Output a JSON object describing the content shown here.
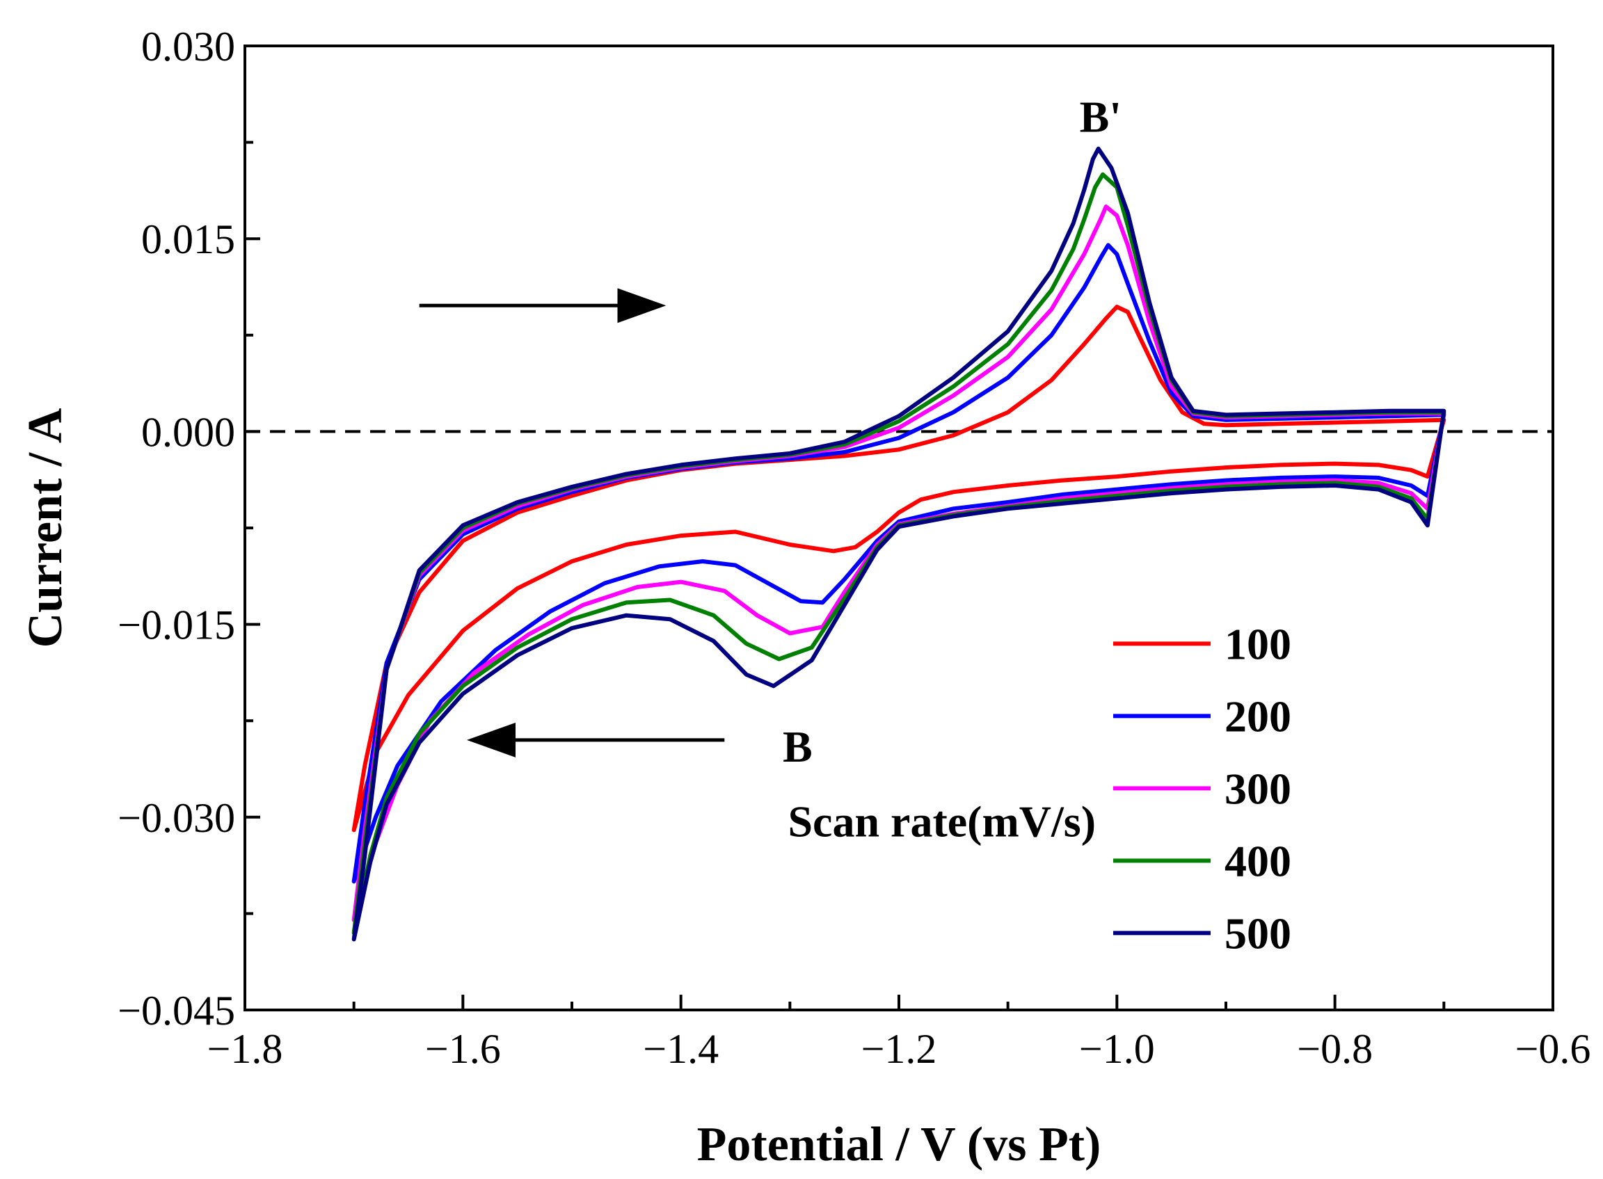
{
  "chart_data": {
    "type": "line",
    "title": "",
    "xlabel": "Potential / V (vs Pt)",
    "ylabel": "Current / A",
    "xlim": [
      -1.8,
      -0.6
    ],
    "ylim": [
      -0.045,
      0.03
    ],
    "xticks": [
      -1.8,
      -1.6,
      -1.4,
      -1.2,
      -1.0,
      -0.8,
      -0.6
    ],
    "xtick_labels": [
      "−1.8",
      "−1.6",
      "−1.4",
      "−1.2",
      "−1.0",
      "−0.8",
      "−0.6"
    ],
    "yticks": [
      0.03,
      0.015,
      0.0,
      -0.015,
      -0.03,
      -0.045
    ],
    "ytick_labels": [
      "0.030",
      "0.015",
      "0.000",
      "−0.015",
      "−0.030",
      "−0.045"
    ],
    "grid": false,
    "zero_line": {
      "y": 0.0,
      "style": "dashed",
      "color": "#000000"
    },
    "legend": {
      "title": "Scan rate(mV/s)",
      "position": "lower-right"
    },
    "annotations": [
      {
        "text": "B'",
        "x": -1.015,
        "y": 0.0245
      },
      {
        "text": "B",
        "x": -1.293,
        "y": -0.0245
      },
      {
        "text": "→ forward scan",
        "x_from": -1.64,
        "x_to": -1.42,
        "y": 0.0098
      },
      {
        "text": "← reverse scan",
        "x_from": -1.36,
        "x_to": -1.59,
        "y": -0.024
      }
    ],
    "series": [
      {
        "name": "100",
        "color": "#ff0000",
        "anodic": [
          [
            -1.7,
            -0.031
          ],
          [
            -1.69,
            -0.026
          ],
          [
            -1.67,
            -0.018
          ],
          [
            -1.64,
            -0.0125
          ],
          [
            -1.6,
            -0.0085
          ],
          [
            -1.55,
            -0.0063
          ],
          [
            -1.5,
            -0.005
          ],
          [
            -1.45,
            -0.0038
          ],
          [
            -1.4,
            -0.003
          ],
          [
            -1.35,
            -0.0025
          ],
          [
            -1.3,
            -0.0022
          ],
          [
            -1.25,
            -0.0019
          ],
          [
            -1.2,
            -0.0014
          ],
          [
            -1.15,
            -0.0003
          ],
          [
            -1.1,
            0.0015
          ],
          [
            -1.06,
            0.004
          ],
          [
            -1.03,
            0.0068
          ],
          [
            -1.01,
            0.0088
          ],
          [
            -1.0,
            0.0097
          ],
          [
            -0.99,
            0.0093
          ],
          [
            -0.98,
            0.0075
          ],
          [
            -0.96,
            0.004
          ],
          [
            -0.94,
            0.0015
          ],
          [
            -0.92,
            0.0006
          ],
          [
            -0.9,
            0.0005
          ],
          [
            -0.85,
            0.0006
          ],
          [
            -0.8,
            0.0007
          ],
          [
            -0.75,
            0.0008
          ],
          [
            -0.7,
            0.0009
          ]
        ],
        "cathodic": [
          [
            -0.715,
            -0.0035
          ],
          [
            -0.73,
            -0.003
          ],
          [
            -0.76,
            -0.0026
          ],
          [
            -0.8,
            -0.0025
          ],
          [
            -0.85,
            -0.0026
          ],
          [
            -0.9,
            -0.0028
          ],
          [
            -0.95,
            -0.0031
          ],
          [
            -1.0,
            -0.0035
          ],
          [
            -1.05,
            -0.0038
          ],
          [
            -1.1,
            -0.0042
          ],
          [
            -1.15,
            -0.0047
          ],
          [
            -1.18,
            -0.0053
          ],
          [
            -1.2,
            -0.0063
          ],
          [
            -1.22,
            -0.0078
          ],
          [
            -1.24,
            -0.009
          ],
          [
            -1.26,
            -0.0093
          ],
          [
            -1.3,
            -0.0088
          ],
          [
            -1.35,
            -0.0078
          ],
          [
            -1.4,
            -0.0081
          ],
          [
            -1.45,
            -0.0088
          ],
          [
            -1.5,
            -0.0101
          ],
          [
            -1.55,
            -0.0122
          ],
          [
            -1.6,
            -0.0155
          ],
          [
            -1.65,
            -0.0205
          ],
          [
            -1.68,
            -0.025
          ],
          [
            -1.7,
            -0.031
          ]
        ]
      },
      {
        "name": "200",
        "color": "#0000ff",
        "anodic": [
          [
            -1.7,
            -0.035
          ],
          [
            -1.69,
            -0.029
          ],
          [
            -1.67,
            -0.018
          ],
          [
            -1.64,
            -0.0115
          ],
          [
            -1.6,
            -0.008
          ],
          [
            -1.55,
            -0.006
          ],
          [
            -1.5,
            -0.0047
          ],
          [
            -1.45,
            -0.0036
          ],
          [
            -1.4,
            -0.0029
          ],
          [
            -1.35,
            -0.0024
          ],
          [
            -1.3,
            -0.0021
          ],
          [
            -1.25,
            -0.0016
          ],
          [
            -1.2,
            -0.0005
          ],
          [
            -1.15,
            0.0015
          ],
          [
            -1.1,
            0.0042
          ],
          [
            -1.06,
            0.0075
          ],
          [
            -1.03,
            0.0112
          ],
          [
            -1.015,
            0.0135
          ],
          [
            -1.008,
            0.0145
          ],
          [
            -1.0,
            0.0138
          ],
          [
            -0.99,
            0.0115
          ],
          [
            -0.97,
            0.007
          ],
          [
            -0.95,
            0.003
          ],
          [
            -0.93,
            0.0012
          ],
          [
            -0.9,
            0.0009
          ],
          [
            -0.85,
            0.001
          ],
          [
            -0.8,
            0.0011
          ],
          [
            -0.75,
            0.0012
          ],
          [
            -0.7,
            0.0013
          ]
        ],
        "cathodic": [
          [
            -0.715,
            -0.005
          ],
          [
            -0.73,
            -0.0042
          ],
          [
            -0.76,
            -0.0036
          ],
          [
            -0.8,
            -0.0035
          ],
          [
            -0.85,
            -0.0036
          ],
          [
            -0.9,
            -0.0038
          ],
          [
            -0.95,
            -0.0041
          ],
          [
            -1.0,
            -0.0045
          ],
          [
            -1.05,
            -0.0049
          ],
          [
            -1.1,
            -0.0055
          ],
          [
            -1.15,
            -0.006
          ],
          [
            -1.2,
            -0.007
          ],
          [
            -1.22,
            -0.0085
          ],
          [
            -1.25,
            -0.0115
          ],
          [
            -1.27,
            -0.0133
          ],
          [
            -1.29,
            -0.0132
          ],
          [
            -1.32,
            -0.0118
          ],
          [
            -1.35,
            -0.0104
          ],
          [
            -1.38,
            -0.0101
          ],
          [
            -1.42,
            -0.0105
          ],
          [
            -1.47,
            -0.0118
          ],
          [
            -1.52,
            -0.014
          ],
          [
            -1.57,
            -0.017
          ],
          [
            -1.62,
            -0.021
          ],
          [
            -1.66,
            -0.026
          ],
          [
            -1.68,
            -0.03
          ],
          [
            -1.7,
            -0.035
          ]
        ]
      },
      {
        "name": "300",
        "color": "#ff00ff",
        "anodic": [
          [
            -1.7,
            -0.038
          ],
          [
            -1.69,
            -0.031
          ],
          [
            -1.67,
            -0.0185
          ],
          [
            -1.64,
            -0.0112
          ],
          [
            -1.6,
            -0.0077
          ],
          [
            -1.55,
            -0.0058
          ],
          [
            -1.5,
            -0.0045
          ],
          [
            -1.45,
            -0.0035
          ],
          [
            -1.4,
            -0.0028
          ],
          [
            -1.35,
            -0.0023
          ],
          [
            -1.3,
            -0.0019
          ],
          [
            -1.25,
            -0.0012
          ],
          [
            -1.2,
            0.0003
          ],
          [
            -1.15,
            0.0028
          ],
          [
            -1.1,
            0.0058
          ],
          [
            -1.06,
            0.0095
          ],
          [
            -1.03,
            0.0138
          ],
          [
            -1.015,
            0.0165
          ],
          [
            -1.01,
            0.0175
          ],
          [
            -1.0,
            0.0168
          ],
          [
            -0.99,
            0.0145
          ],
          [
            -0.97,
            0.0085
          ],
          [
            -0.95,
            0.0035
          ],
          [
            -0.93,
            0.0014
          ],
          [
            -0.9,
            0.0011
          ],
          [
            -0.85,
            0.0012
          ],
          [
            -0.8,
            0.0013
          ],
          [
            -0.75,
            0.0014
          ],
          [
            -0.7,
            0.0014
          ]
        ],
        "cathodic": [
          [
            -0.715,
            -0.006
          ],
          [
            -0.73,
            -0.0048
          ],
          [
            -0.76,
            -0.004
          ],
          [
            -0.8,
            -0.0038
          ],
          [
            -0.85,
            -0.0039
          ],
          [
            -0.9,
            -0.0041
          ],
          [
            -0.95,
            -0.0044
          ],
          [
            -1.0,
            -0.0048
          ],
          [
            -1.05,
            -0.0052
          ],
          [
            -1.1,
            -0.0058
          ],
          [
            -1.15,
            -0.0064
          ],
          [
            -1.2,
            -0.0072
          ],
          [
            -1.22,
            -0.0088
          ],
          [
            -1.25,
            -0.0125
          ],
          [
            -1.27,
            -0.0152
          ],
          [
            -1.3,
            -0.0157
          ],
          [
            -1.33,
            -0.0143
          ],
          [
            -1.36,
            -0.0124
          ],
          [
            -1.4,
            -0.0117
          ],
          [
            -1.44,
            -0.0121
          ],
          [
            -1.49,
            -0.0135
          ],
          [
            -1.54,
            -0.0158
          ],
          [
            -1.59,
            -0.0188
          ],
          [
            -1.63,
            -0.0225
          ],
          [
            -1.66,
            -0.0275
          ],
          [
            -1.68,
            -0.032
          ],
          [
            -1.7,
            -0.038
          ]
        ]
      },
      {
        "name": "400",
        "color": "#008000",
        "anodic": [
          [
            -1.7,
            -0.039
          ],
          [
            -1.69,
            -0.032
          ],
          [
            -1.67,
            -0.0185
          ],
          [
            -1.64,
            -0.011
          ],
          [
            -1.6,
            -0.0075
          ],
          [
            -1.55,
            -0.0056
          ],
          [
            -1.5,
            -0.0044
          ],
          [
            -1.45,
            -0.0034
          ],
          [
            -1.4,
            -0.0027
          ],
          [
            -1.35,
            -0.0022
          ],
          [
            -1.3,
            -0.0018
          ],
          [
            -1.25,
            -0.001
          ],
          [
            -1.2,
            0.0008
          ],
          [
            -1.15,
            0.0035
          ],
          [
            -1.1,
            0.0068
          ],
          [
            -1.06,
            0.011
          ],
          [
            -1.04,
            0.0142
          ],
          [
            -1.03,
            0.0165
          ],
          [
            -1.02,
            0.019
          ],
          [
            -1.013,
            0.02
          ],
          [
            -1.0,
            0.019
          ],
          [
            -0.99,
            0.016
          ],
          [
            -0.97,
            0.0095
          ],
          [
            -0.95,
            0.004
          ],
          [
            -0.93,
            0.0015
          ],
          [
            -0.9,
            0.0012
          ],
          [
            -0.85,
            0.0013
          ],
          [
            -0.8,
            0.0014
          ],
          [
            -0.75,
            0.0015
          ],
          [
            -0.7,
            0.0015
          ]
        ],
        "cathodic": [
          [
            -0.715,
            -0.0068
          ],
          [
            -0.73,
            -0.0052
          ],
          [
            -0.76,
            -0.0043
          ],
          [
            -0.8,
            -0.004
          ],
          [
            -0.85,
            -0.0041
          ],
          [
            -0.9,
            -0.0043
          ],
          [
            -0.95,
            -0.0046
          ],
          [
            -1.0,
            -0.005
          ],
          [
            -1.05,
            -0.0054
          ],
          [
            -1.1,
            -0.0059
          ],
          [
            -1.15,
            -0.0065
          ],
          [
            -1.2,
            -0.0073
          ],
          [
            -1.22,
            -0.009
          ],
          [
            -1.25,
            -0.013
          ],
          [
            -1.28,
            -0.0168
          ],
          [
            -1.31,
            -0.0177
          ],
          [
            -1.34,
            -0.0165
          ],
          [
            -1.37,
            -0.0143
          ],
          [
            -1.41,
            -0.0131
          ],
          [
            -1.45,
            -0.0133
          ],
          [
            -1.5,
            -0.0146
          ],
          [
            -1.55,
            -0.0168
          ],
          [
            -1.6,
            -0.0198
          ],
          [
            -1.64,
            -0.0235
          ],
          [
            -1.67,
            -0.0285
          ],
          [
            -1.685,
            -0.033
          ],
          [
            -1.7,
            -0.039
          ]
        ]
      },
      {
        "name": "500",
        "color": "#000080",
        "anodic": [
          [
            -1.7,
            -0.0395
          ],
          [
            -1.69,
            -0.033
          ],
          [
            -1.67,
            -0.0185
          ],
          [
            -1.64,
            -0.0108
          ],
          [
            -1.6,
            -0.0073
          ],
          [
            -1.55,
            -0.0055
          ],
          [
            -1.5,
            -0.0043
          ],
          [
            -1.45,
            -0.0033
          ],
          [
            -1.4,
            -0.0026
          ],
          [
            -1.35,
            -0.0021
          ],
          [
            -1.3,
            -0.0017
          ],
          [
            -1.25,
            -0.0008
          ],
          [
            -1.2,
            0.0012
          ],
          [
            -1.15,
            0.0042
          ],
          [
            -1.1,
            0.0078
          ],
          [
            -1.06,
            0.0125
          ],
          [
            -1.04,
            0.0162
          ],
          [
            -1.03,
            0.0188
          ],
          [
            -1.022,
            0.0212
          ],
          [
            -1.017,
            0.022
          ],
          [
            -1.005,
            0.0205
          ],
          [
            -0.99,
            0.017
          ],
          [
            -0.97,
            0.01
          ],
          [
            -0.95,
            0.0042
          ],
          [
            -0.93,
            0.0016
          ],
          [
            -0.9,
            0.0013
          ],
          [
            -0.85,
            0.0014
          ],
          [
            -0.8,
            0.0015
          ],
          [
            -0.75,
            0.0016
          ],
          [
            -0.7,
            0.0016
          ]
        ],
        "cathodic": [
          [
            -0.715,
            -0.0073
          ],
          [
            -0.73,
            -0.0055
          ],
          [
            -0.76,
            -0.0045
          ],
          [
            -0.8,
            -0.0042
          ],
          [
            -0.85,
            -0.0043
          ],
          [
            -0.9,
            -0.0045
          ],
          [
            -0.95,
            -0.0048
          ],
          [
            -1.0,
            -0.0052
          ],
          [
            -1.05,
            -0.0056
          ],
          [
            -1.1,
            -0.006
          ],
          [
            -1.15,
            -0.0066
          ],
          [
            -1.2,
            -0.0074
          ],
          [
            -1.22,
            -0.0092
          ],
          [
            -1.25,
            -0.0135
          ],
          [
            -1.28,
            -0.0178
          ],
          [
            -1.315,
            -0.0198
          ],
          [
            -1.34,
            -0.0189
          ],
          [
            -1.37,
            -0.0163
          ],
          [
            -1.41,
            -0.0146
          ],
          [
            -1.45,
            -0.0143
          ],
          [
            -1.5,
            -0.0153
          ],
          [
            -1.55,
            -0.0174
          ],
          [
            -1.6,
            -0.0204
          ],
          [
            -1.64,
            -0.0242
          ],
          [
            -1.67,
            -0.029
          ],
          [
            -1.685,
            -0.0335
          ],
          [
            -1.7,
            -0.0395
          ]
        ]
      }
    ]
  }
}
